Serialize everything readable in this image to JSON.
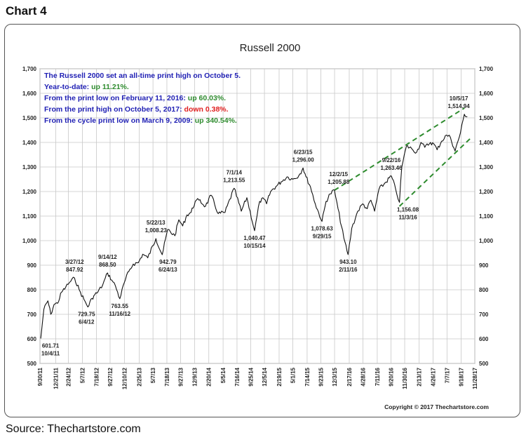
{
  "page": {
    "heading": "Chart 4",
    "source": "Source: Thechartstore.com"
  },
  "chart_data": {
    "type": "line",
    "title": "Russell 2000",
    "copyright": "Copyright © 2017 Thechartstore.com",
    "xlabel": "",
    "ylabel": "",
    "ylim": [
      500,
      1700
    ],
    "y_ticks": [
      500,
      600,
      700,
      800,
      900,
      1000,
      1100,
      1200,
      1300,
      1400,
      1500,
      1600,
      1700
    ],
    "y_tick_labels": [
      "500",
      "600",
      "700",
      "800",
      "900",
      "1,000",
      "1,100",
      "1,200",
      "1,300",
      "1,400",
      "1,500",
      "1,600",
      "1,700"
    ],
    "xlim": [
      "2011-09-30",
      "2017-11-28"
    ],
    "x_ticks": [
      "2011-09-30",
      "2011-12-21",
      "2012-02-24",
      "2012-05-07",
      "2012-07-18",
      "2012-09-27",
      "2012-12-10",
      "2013-02-25",
      "2013-05-07",
      "2013-07-18",
      "2013-09-27",
      "2013-12-09",
      "2014-02-20",
      "2014-05-05",
      "2014-07-16",
      "2014-09-25",
      "2014-12-05",
      "2015-02-19",
      "2015-05-01",
      "2015-07-14",
      "2015-09-23",
      "2015-12-03",
      "2016-02-17",
      "2016-04-28",
      "2016-07-11",
      "2016-09-20",
      "2016-11-30",
      "2017-02-13",
      "2017-04-26",
      "2017-07-07",
      "2017-09-18",
      "2017-11-28"
    ],
    "x_tick_labels": [
      "9/30/11",
      "12/21/11",
      "2/24/12",
      "5/7/12",
      "7/18/12",
      "9/27/12",
      "12/10/12",
      "2/25/13",
      "5/7/13",
      "7/18/13",
      "9/27/13",
      "12/9/13",
      "2/20/14",
      "5/5/14",
      "7/16/14",
      "9/25/14",
      "12/5/14",
      "2/19/15",
      "5/1/15",
      "7/14/15",
      "9/23/15",
      "12/3/15",
      "2/17/16",
      "4/28/16",
      "7/11/16",
      "9/20/16",
      "11/30/16",
      "2/13/17",
      "4/26/17",
      "7/7/17",
      "9/18/17",
      "11/28/17"
    ],
    "grid": true,
    "series": [
      {
        "x": [
          "2011-10-04",
          "2011-10-20",
          "2011-11-10",
          "2011-11-25",
          "2011-12-12",
          "2011-12-30",
          "2012-01-20",
          "2012-02-10",
          "2012-03-01",
          "2012-03-27",
          "2012-04-20",
          "2012-05-15",
          "2012-06-04",
          "2012-06-25",
          "2012-07-10",
          "2012-07-25",
          "2012-08-20",
          "2012-09-14",
          "2012-10-05",
          "2012-10-25",
          "2012-11-16",
          "2012-12-10",
          "2013-01-02",
          "2013-01-25",
          "2013-02-20",
          "2013-03-15",
          "2013-04-10",
          "2013-05-22",
          "2013-06-24",
          "2013-07-22",
          "2013-08-28",
          "2013-09-18",
          "2013-10-08",
          "2013-10-30",
          "2013-11-20",
          "2013-12-12",
          "2013-12-31",
          "2014-02-03",
          "2014-03-04",
          "2014-04-10",
          "2014-05-15",
          "2014-07-01",
          "2014-08-07",
          "2014-09-05",
          "2014-10-15",
          "2014-11-10",
          "2014-12-02",
          "2014-12-16",
          "2015-01-06",
          "2015-02-02",
          "2015-03-02",
          "2015-04-01",
          "2015-05-01",
          "2015-06-01",
          "2015-06-23",
          "2015-07-08",
          "2015-07-31",
          "2015-08-25",
          "2015-09-29",
          "2015-10-20",
          "2015-11-10",
          "2015-12-02",
          "2015-12-21",
          "2016-01-20",
          "2016-02-11",
          "2016-03-01",
          "2016-04-01",
          "2016-04-27",
          "2016-05-20",
          "2016-06-08",
          "2016-06-27",
          "2016-07-20",
          "2016-08-15",
          "2016-09-22",
          "2016-10-14",
          "2016-11-03",
          "2016-11-15",
          "2016-12-09",
          "2017-01-05",
          "2017-01-31",
          "2017-02-22",
          "2017-03-14",
          "2017-04-13",
          "2017-05-04",
          "2017-05-17",
          "2017-06-09",
          "2017-07-05",
          "2017-07-25",
          "2017-08-18",
          "2017-09-15",
          "2017-10-05",
          "2017-10-20"
        ],
        "y": [
          601.71,
          720,
          755,
          700,
          740,
          745,
          790,
          810,
          830,
          847.92,
          800,
          760,
          729.75,
          765,
          780,
          790,
          820,
          868.5,
          840,
          815,
          763.55,
          830,
          875,
          905,
          910,
          945,
          930,
          1008.23,
          942.79,
          1045,
          1020,
          1085,
          1060,
          1105,
          1115,
          1160,
          1165,
          1140,
          1185,
          1110,
          1115,
          1213.55,
          1120,
          1175,
          1040.47,
          1160,
          1170,
          1150,
          1200,
          1220,
          1240,
          1260,
          1250,
          1265,
          1296.0,
          1260,
          1220,
          1150,
          1078.63,
          1160,
          1190,
          1205.88,
          1130,
          1010,
          943.1,
          1050,
          1120,
          1150,
          1130,
          1165,
          1120,
          1210,
          1230,
          1263.46,
          1210,
          1156.08,
          1300,
          1385,
          1375,
          1360,
          1400,
          1380,
          1400,
          1390,
          1370,
          1405,
          1430,
          1420,
          1365,
          1440,
          1514.94,
          1505
        ]
      }
    ],
    "point_annotations": [
      {
        "date": "2011-10-04",
        "value": 601.71,
        "value_label": "601.71",
        "date_label": "10/4/11"
      },
      {
        "date": "2012-03-27",
        "value": 847.92,
        "value_label": "847.92",
        "date_label": "3/27/12"
      },
      {
        "date": "2012-06-04",
        "value": 729.75,
        "value_label": "729.75",
        "date_label": "6/4/12"
      },
      {
        "date": "2012-09-14",
        "value": 868.5,
        "value_label": "868.50",
        "date_label": "9/14/12"
      },
      {
        "date": "2012-11-16",
        "value": 763.55,
        "value_label": "763.55",
        "date_label": "11/16/12"
      },
      {
        "date": "2013-05-22",
        "value": 1008.23,
        "value_label": "1,008.23",
        "date_label": "5/22/13"
      },
      {
        "date": "2013-06-24",
        "value": 942.79,
        "value_label": "942.79",
        "date_label": "6/24/13"
      },
      {
        "date": "2014-07-01",
        "value": 1213.55,
        "value_label": "1,213.55",
        "date_label": "7/1/14"
      },
      {
        "date": "2014-10-15",
        "value": 1040.47,
        "value_label": "1,040.47",
        "date_label": "10/15/14"
      },
      {
        "date": "2015-06-23",
        "value": 1296.0,
        "value_label": "1,296.00",
        "date_label": "6/23/15"
      },
      {
        "date": "2015-09-29",
        "value": 1078.63,
        "value_label": "1,078.63",
        "date_label": "9/29/15"
      },
      {
        "date": "2015-12-02",
        "value": 1205.88,
        "value_label": "1,205.88",
        "date_label": "12/2/15"
      },
      {
        "date": "2016-02-11",
        "value": 943.1,
        "value_label": "943.10",
        "date_label": "2/11/16"
      },
      {
        "date": "2016-09-22",
        "value": 1263.46,
        "value_label": "1,263.46",
        "date_label": "9/22/16"
      },
      {
        "date": "2016-11-03",
        "value": 1156.08,
        "value_label": "1,156.08",
        "date_label": "11/3/16"
      },
      {
        "date": "2017-10-05",
        "value": 1514.94,
        "value_label": "1,514.94",
        "date_label": "10/5/17"
      }
    ],
    "trend_channel": [
      {
        "from": [
          "2015-12-02",
          1205
        ],
        "to": [
          "2017-10-05",
          1540
        ]
      },
      {
        "from": [
          "2016-11-03",
          1140
        ],
        "to": [
          "2017-11-10",
          1420
        ]
      }
    ],
    "notes": [
      {
        "text": "The Russell 2000 set an all-time print high on October 5.",
        "highlight": "",
        "color": "#1f1fb4",
        "highlight_color": ""
      },
      {
        "text": "Year-to-date: ",
        "highlight": "up 11.21%.",
        "color": "#1f1fb4",
        "highlight_color": "#2e8b2e"
      },
      {
        "text": "From the print low on February 11, 2016: ",
        "highlight": "up 60.03%.",
        "color": "#1f1fb4",
        "highlight_color": "#2e8b2e"
      },
      {
        "text": "From the print high on October 5, 2017: ",
        "highlight": "down 0.38%.",
        "color": "#1f1fb4",
        "highlight_color": "#e02020"
      },
      {
        "text": "From the cycle print low on March 9, 2009: ",
        "highlight": "up 340.54%.",
        "color": "#1f1fb4",
        "highlight_color": "#2e8b2e"
      }
    ],
    "colors": {
      "line": "#111111",
      "trend": "#2e8b2e",
      "grid": "#c8c8c8",
      "frame": "#555555"
    }
  }
}
